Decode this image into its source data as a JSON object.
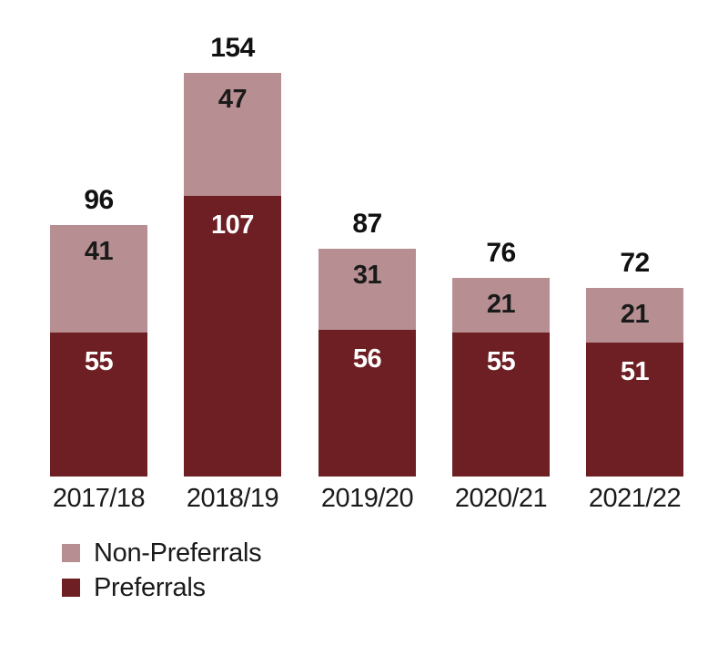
{
  "chart_data": {
    "type": "bar",
    "stacked": true,
    "title": "",
    "xlabel": "",
    "ylabel": "",
    "grid": false,
    "y_axis_visible": false,
    "ylim": [
      0,
      160
    ],
    "categories": [
      "2017/18",
      "2018/19",
      "2019/20",
      "2020/21",
      "2021/22"
    ],
    "series": [
      {
        "name": "Preferrals",
        "values": [
          55,
          107,
          56,
          55,
          51
        ],
        "color": "#6e1f23",
        "label_color": "#ffffff"
      },
      {
        "name": "Non-Preferrals",
        "values": [
          41,
          47,
          31,
          21,
          21
        ],
        "color": "#b78f92",
        "label_color": "#1a1a1a"
      }
    ],
    "totals": [
      96,
      154,
      87,
      76,
      72
    ],
    "legend_position": "bottom-left",
    "legend": [
      {
        "label": "Non-Preferrals",
        "color": "#b78f92"
      },
      {
        "label": "Preferrals",
        "color": "#6e1f23"
      }
    ]
  },
  "colors": {
    "background": "#ffffff",
    "total_label": "#111111",
    "axis_label": "#1a1a1a"
  }
}
